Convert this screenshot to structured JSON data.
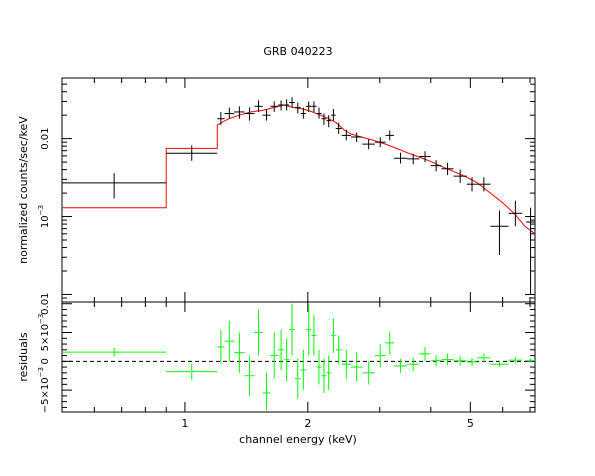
{
  "chart_data": {
    "type": "scatter",
    "title": "GRB 040223",
    "xlabel": "channel energy (keV)",
    "x_scale": "log",
    "xlim": [
      0.5,
      7.2
    ],
    "x_ticks": [
      1,
      2,
      5
    ],
    "top_panel": {
      "ylabel": "normalized counts/sec/keV",
      "y_scale": "log",
      "ylim": [
        8e-05,
        0.06
      ],
      "y_ticks": [
        {
          "value": 0.01,
          "label": "0.01"
        },
        {
          "value": 0.001,
          "label": "10",
          "sup": "−3"
        }
      ],
      "data": [
        {
          "xlo": 0.5,
          "xhi": 0.9,
          "y": 0.0027,
          "ylo": 0.0017,
          "yhi": 0.0036
        },
        {
          "xlo": 0.9,
          "xhi": 1.2,
          "y": 0.0065,
          "ylo": 0.0052,
          "yhi": 0.0082
        },
        {
          "xlo": 1.2,
          "xhi": 1.25,
          "y": 0.018,
          "ylo": 0.015,
          "yhi": 0.022
        },
        {
          "xlo": 1.25,
          "xhi": 1.32,
          "y": 0.021,
          "ylo": 0.018,
          "yhi": 0.025
        },
        {
          "xlo": 1.32,
          "xhi": 1.4,
          "y": 0.022,
          "ylo": 0.018,
          "yhi": 0.026
        },
        {
          "xlo": 1.4,
          "xhi": 1.48,
          "y": 0.021,
          "ylo": 0.017,
          "yhi": 0.025
        },
        {
          "xlo": 1.48,
          "xhi": 1.55,
          "y": 0.026,
          "ylo": 0.022,
          "yhi": 0.031
        },
        {
          "xlo": 1.55,
          "xhi": 1.62,
          "y": 0.02,
          "ylo": 0.017,
          "yhi": 0.024
        },
        {
          "xlo": 1.62,
          "xhi": 1.69,
          "y": 0.026,
          "ylo": 0.022,
          "yhi": 0.03
        },
        {
          "xlo": 1.69,
          "xhi": 1.75,
          "y": 0.027,
          "ylo": 0.023,
          "yhi": 0.031
        },
        {
          "xlo": 1.75,
          "xhi": 1.8,
          "y": 0.027,
          "ylo": 0.023,
          "yhi": 0.032
        },
        {
          "xlo": 1.8,
          "xhi": 1.86,
          "y": 0.029,
          "ylo": 0.025,
          "yhi": 0.034
        },
        {
          "xlo": 1.86,
          "xhi": 1.92,
          "y": 0.025,
          "ylo": 0.021,
          "yhi": 0.029
        },
        {
          "xlo": 1.92,
          "xhi": 1.98,
          "y": 0.021,
          "ylo": 0.018,
          "yhi": 0.025
        },
        {
          "xlo": 1.98,
          "xhi": 2.04,
          "y": 0.026,
          "ylo": 0.022,
          "yhi": 0.03
        },
        {
          "xlo": 2.04,
          "xhi": 2.1,
          "y": 0.026,
          "ylo": 0.022,
          "yhi": 0.03
        },
        {
          "xlo": 2.1,
          "xhi": 2.16,
          "y": 0.021,
          "ylo": 0.018,
          "yhi": 0.025
        },
        {
          "xlo": 2.16,
          "xhi": 2.22,
          "y": 0.018,
          "ylo": 0.015,
          "yhi": 0.021
        },
        {
          "xlo": 2.22,
          "xhi": 2.28,
          "y": 0.017,
          "ylo": 0.014,
          "yhi": 0.02
        },
        {
          "xlo": 2.28,
          "xhi": 2.34,
          "y": 0.02,
          "ylo": 0.017,
          "yhi": 0.024
        },
        {
          "xlo": 2.34,
          "xhi": 2.42,
          "y": 0.0135,
          "ylo": 0.0115,
          "yhi": 0.016
        },
        {
          "xlo": 2.42,
          "xhi": 2.55,
          "y": 0.011,
          "ylo": 0.0095,
          "yhi": 0.013
        },
        {
          "xlo": 2.55,
          "xhi": 2.72,
          "y": 0.0105,
          "ylo": 0.009,
          "yhi": 0.012
        },
        {
          "xlo": 2.72,
          "xhi": 2.92,
          "y": 0.0085,
          "ylo": 0.0073,
          "yhi": 0.0098
        },
        {
          "xlo": 2.92,
          "xhi": 3.1,
          "y": 0.009,
          "ylo": 0.0078,
          "yhi": 0.0104
        },
        {
          "xlo": 3.1,
          "xhi": 3.25,
          "y": 0.011,
          "ylo": 0.0095,
          "yhi": 0.0127
        },
        {
          "xlo": 3.25,
          "xhi": 3.5,
          "y": 0.0056,
          "ylo": 0.0048,
          "yhi": 0.0066
        },
        {
          "xlo": 3.5,
          "xhi": 3.75,
          "y": 0.0055,
          "ylo": 0.0047,
          "yhi": 0.0064
        },
        {
          "xlo": 3.75,
          "xhi": 4.0,
          "y": 0.0059,
          "ylo": 0.005,
          "yhi": 0.0069
        },
        {
          "xlo": 4.0,
          "xhi": 4.25,
          "y": 0.0045,
          "ylo": 0.0038,
          "yhi": 0.0053
        },
        {
          "xlo": 4.25,
          "xhi": 4.55,
          "y": 0.0041,
          "ylo": 0.0034,
          "yhi": 0.0049
        },
        {
          "xlo": 4.55,
          "xhi": 4.9,
          "y": 0.0033,
          "ylo": 0.0027,
          "yhi": 0.004
        },
        {
          "xlo": 4.9,
          "xhi": 5.2,
          "y": 0.0026,
          "ylo": 0.0021,
          "yhi": 0.0032
        },
        {
          "xlo": 5.2,
          "xhi": 5.6,
          "y": 0.0026,
          "ylo": 0.0021,
          "yhi": 0.0032
        },
        {
          "xlo": 5.6,
          "xhi": 6.2,
          "y": 0.00075,
          "ylo": 0.00032,
          "yhi": 0.0012
        },
        {
          "xlo": 6.2,
          "xhi": 6.7,
          "y": 0.0011,
          "ylo": 0.00075,
          "yhi": 0.0016
        },
        {
          "xlo": 6.85,
          "xhi": 7.2,
          "y": 0.00085,
          "ylo": 0.0001,
          "yhi": 0.0013
        }
      ],
      "model": [
        [
          0.5,
          0.0013
        ],
        [
          0.9,
          0.0013
        ],
        [
          0.9,
          0.0075
        ],
        [
          1.2,
          0.0075
        ],
        [
          1.2,
          0.015
        ],
        [
          1.28,
          0.018
        ],
        [
          1.36,
          0.02
        ],
        [
          1.45,
          0.022
        ],
        [
          1.55,
          0.023
        ],
        [
          1.65,
          0.025
        ],
        [
          1.75,
          0.027
        ],
        [
          1.85,
          0.025
        ],
        [
          1.95,
          0.024
        ],
        [
          2.05,
          0.022
        ],
        [
          2.15,
          0.02
        ],
        [
          2.25,
          0.018
        ],
        [
          2.35,
          0.016
        ],
        [
          2.45,
          0.013
        ],
        [
          2.55,
          0.0115
        ],
        [
          2.7,
          0.0105
        ],
        [
          2.9,
          0.0095
        ],
        [
          3.1,
          0.0085
        ],
        [
          3.3,
          0.0075
        ],
        [
          3.5,
          0.0066
        ],
        [
          3.75,
          0.0058
        ],
        [
          4.0,
          0.0051
        ],
        [
          4.25,
          0.0044
        ],
        [
          4.55,
          0.0038
        ],
        [
          4.9,
          0.0032
        ],
        [
          5.2,
          0.0027
        ],
        [
          5.6,
          0.002
        ],
        [
          6.0,
          0.0015
        ],
        [
          6.4,
          0.0011
        ],
        [
          6.8,
          0.00075
        ],
        [
          7.2,
          0.0006
        ]
      ]
    },
    "bottom_panel": {
      "ylabel": "residuals",
      "ylim": [
        -0.0088,
        0.0103
      ],
      "y_ticks": [
        {
          "value": 0.01,
          "label": "0.01"
        },
        {
          "value": 0.005,
          "label": "5×10",
          "sup": "−3"
        },
        {
          "value": 0,
          "label": "0"
        },
        {
          "value": -0.005,
          "label": "−5×10",
          "sup": "−3"
        }
      ],
      "zero_line": 0,
      "data": [
        {
          "xlo": 0.5,
          "xhi": 0.9,
          "y": 0.0016,
          "ylo": 0.0008,
          "yhi": 0.0024
        },
        {
          "xlo": 0.9,
          "xhi": 1.2,
          "y": -0.0018,
          "ylo": -0.0032,
          "yhi": -0.0004
        },
        {
          "xlo": 1.2,
          "xhi": 1.25,
          "y": 0.0025,
          "ylo": -0.0005,
          "yhi": 0.0055
        },
        {
          "xlo": 1.25,
          "xhi": 1.32,
          "y": 0.0035,
          "ylo": 0.0,
          "yhi": 0.007
        },
        {
          "xlo": 1.32,
          "xhi": 1.4,
          "y": 0.0015,
          "ylo": -0.002,
          "yhi": 0.005
        },
        {
          "xlo": 1.4,
          "xhi": 1.48,
          "y": -0.0025,
          "ylo": -0.006,
          "yhi": 0.001
        },
        {
          "xlo": 1.48,
          "xhi": 1.55,
          "y": 0.005,
          "ylo": 0.001,
          "yhi": 0.009
        },
        {
          "xlo": 1.55,
          "xhi": 1.62,
          "y": -0.0055,
          "ylo": -0.0085,
          "yhi": -0.002
        },
        {
          "xlo": 1.62,
          "xhi": 1.69,
          "y": 0.001,
          "ylo": -0.003,
          "yhi": 0.005
        },
        {
          "xlo": 1.69,
          "xhi": 1.75,
          "y": 0.002,
          "ylo": -0.0015,
          "yhi": 0.0055
        },
        {
          "xlo": 1.75,
          "xhi": 1.8,
          "y": 0.0003,
          "ylo": -0.0035,
          "yhi": 0.004
        },
        {
          "xlo": 1.8,
          "xhi": 1.86,
          "y": 0.0055,
          "ylo": 0.001,
          "yhi": 0.01
        },
        {
          "xlo": 1.86,
          "xhi": 1.92,
          "y": -0.003,
          "ylo": -0.0065,
          "yhi": 0.0005
        },
        {
          "xlo": 1.92,
          "xhi": 1.98,
          "y": -0.0015,
          "ylo": -0.005,
          "yhi": 0.002
        },
        {
          "xlo": 1.98,
          "xhi": 2.04,
          "y": 0.0055,
          "ylo": 0.001,
          "yhi": 0.01
        },
        {
          "xlo": 2.04,
          "xhi": 2.1,
          "y": 0.0045,
          "ylo": 0.001,
          "yhi": 0.008
        },
        {
          "xlo": 2.1,
          "xhi": 2.16,
          "y": -0.001,
          "ylo": -0.004,
          "yhi": 0.002
        },
        {
          "xlo": 2.16,
          "xhi": 2.22,
          "y": -0.0025,
          "ylo": -0.0055,
          "yhi": 0.0005
        },
        {
          "xlo": 2.22,
          "xhi": 2.28,
          "y": -0.002,
          "ylo": -0.005,
          "yhi": 0.001
        },
        {
          "xlo": 2.28,
          "xhi": 2.34,
          "y": 0.0045,
          "ylo": 0.0015,
          "yhi": 0.0075
        },
        {
          "xlo": 2.34,
          "xhi": 2.42,
          "y": 0.002,
          "ylo": -0.0005,
          "yhi": 0.0045
        },
        {
          "xlo": 2.42,
          "xhi": 2.55,
          "y": -0.0005,
          "ylo": -0.003,
          "yhi": 0.002
        },
        {
          "xlo": 2.55,
          "xhi": 2.72,
          "y": -0.001,
          "ylo": -0.0035,
          "yhi": 0.0015
        },
        {
          "xlo": 2.72,
          "xhi": 2.92,
          "y": -0.002,
          "ylo": -0.004,
          "yhi": 0.0
        },
        {
          "xlo": 2.92,
          "xhi": 3.1,
          "y": 0.001,
          "ylo": -0.001,
          "yhi": 0.003
        },
        {
          "xlo": 3.1,
          "xhi": 3.25,
          "y": 0.0032,
          "ylo": 0.0012,
          "yhi": 0.0052
        },
        {
          "xlo": 3.25,
          "xhi": 3.5,
          "y": -0.0008,
          "ylo": -0.002,
          "yhi": 0.0004
        },
        {
          "xlo": 3.5,
          "xhi": 3.75,
          "y": -0.0005,
          "ylo": -0.0017,
          "yhi": 0.0007
        },
        {
          "xlo": 3.75,
          "xhi": 4.0,
          "y": 0.0013,
          "ylo": 0.0001,
          "yhi": 0.0025
        },
        {
          "xlo": 4.0,
          "xhi": 4.25,
          "y": 0.0001,
          "ylo": -0.0009,
          "yhi": 0.0011
        },
        {
          "xlo": 4.25,
          "xhi": 4.55,
          "y": 0.0003,
          "ylo": -0.0007,
          "yhi": 0.0013
        },
        {
          "xlo": 4.55,
          "xhi": 4.9,
          "y": 0.0001,
          "ylo": -0.0007,
          "yhi": 0.0009
        },
        {
          "xlo": 4.9,
          "xhi": 5.2,
          "y": -0.0001,
          "ylo": -0.0008,
          "yhi": 0.0006
        },
        {
          "xlo": 5.2,
          "xhi": 5.6,
          "y": 0.0006,
          "ylo": -0.0001,
          "yhi": 0.0013
        },
        {
          "xlo": 5.6,
          "xhi": 6.2,
          "y": -0.0005,
          "ylo": -0.001,
          "yhi": 0.0
        },
        {
          "xlo": 6.2,
          "xhi": 6.7,
          "y": 0.0002,
          "ylo": -0.0003,
          "yhi": 0.0007
        },
        {
          "xlo": 6.85,
          "xhi": 7.2,
          "y": 0.0001,
          "ylo": -0.0002,
          "yhi": 0.0004
        }
      ]
    },
    "colors": {
      "data_top": "#000000",
      "model": "#ff0000",
      "residuals": "#00ff00",
      "frame": "#000000",
      "zero_line": "#000000"
    }
  }
}
